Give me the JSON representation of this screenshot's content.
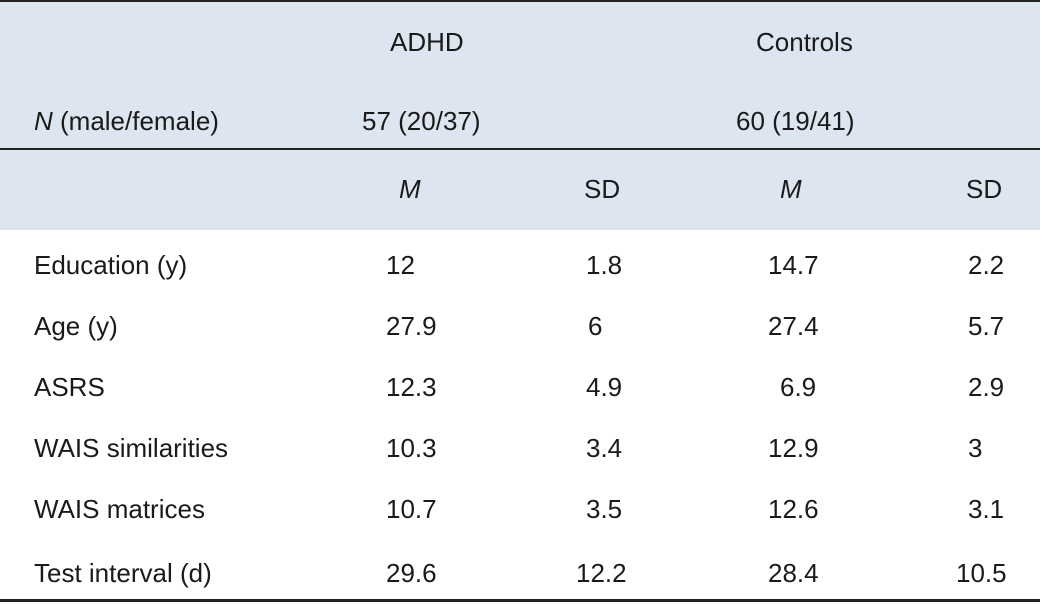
{
  "table": {
    "groups": [
      {
        "label": "ADHD"
      },
      {
        "label": "Controls"
      }
    ],
    "n_row": {
      "label_italic": "N",
      "label_rest": " (male/female)",
      "adhd": "57 (20/37)",
      "controls": "60 (19/41)"
    },
    "subheaders": [
      "M",
      "SD",
      "M",
      "SD"
    ],
    "rows": [
      {
        "label": "Education (y)",
        "adhd_m": "12",
        "adhd_sd": "1.8",
        "ctrl_m": "14.7",
        "ctrl_sd": "2.2"
      },
      {
        "label": "Age (y)",
        "adhd_m": "27.9",
        "adhd_sd": "6",
        "ctrl_m": "27.4",
        "ctrl_sd": "5.7"
      },
      {
        "label": "ASRS",
        "adhd_m": "12.3",
        "adhd_sd": "4.9",
        "ctrl_m": "6.9",
        "ctrl_sd": "2.9"
      },
      {
        "label": "WAIS similarities",
        "adhd_m": "10.3",
        "adhd_sd": "3.4",
        "ctrl_m": "12.9",
        "ctrl_sd": "3"
      },
      {
        "label": "WAIS matrices",
        "adhd_m": "10.7",
        "adhd_sd": "3.5",
        "ctrl_m": "12.6",
        "ctrl_sd": "3.1"
      },
      {
        "label": "Test interval (d)",
        "adhd_m": "29.6",
        "adhd_sd": "12.2",
        "ctrl_m": "28.4",
        "ctrl_sd": "10.5"
      }
    ]
  }
}
